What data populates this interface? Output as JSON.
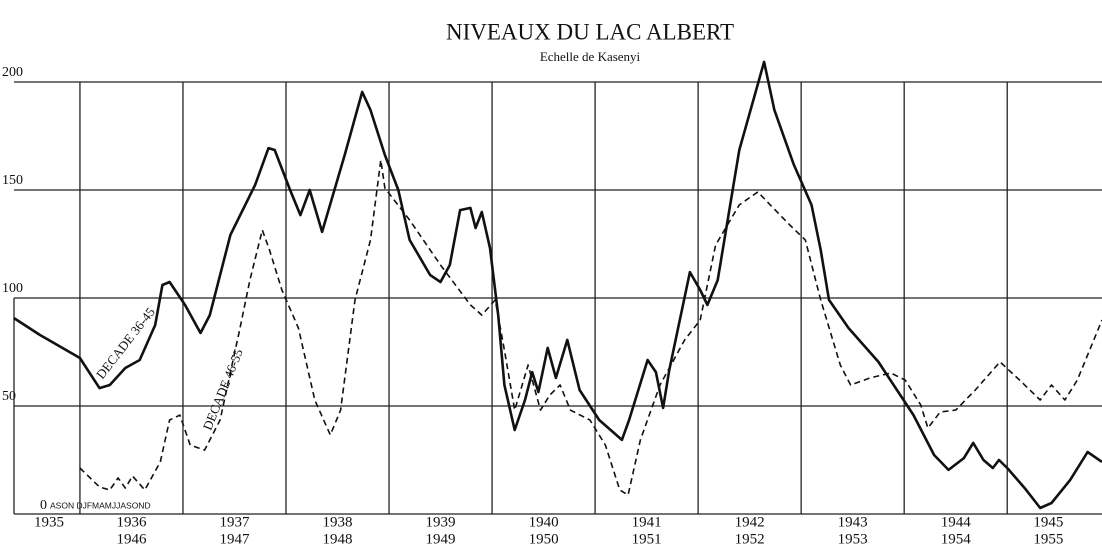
{
  "chart_data": {
    "type": "line",
    "title": "NIVEAUX DU LAC ALBERT",
    "subtitle": "Echelle de Kasenyi",
    "month_axis": "ASON DJFMAMJJASOND",
    "xlim": [
      1935.36,
      1945.92
    ],
    "ylim": [
      0,
      200
    ],
    "yticks": [
      0,
      50,
      100,
      150,
      200
    ],
    "xticks": [
      1936,
      1937,
      1938,
      1939,
      1940,
      1941,
      1942,
      1943,
      1944,
      1945
    ],
    "year_labels": [
      {
        "value": 1935.7,
        "labels": [
          "1935"
        ]
      },
      {
        "value": 1936.5,
        "labels": [
          "1936",
          "1946"
        ]
      },
      {
        "value": 1937.5,
        "labels": [
          "1937",
          "1947"
        ]
      },
      {
        "value": 1938.5,
        "labels": [
          "1938",
          "1948"
        ]
      },
      {
        "value": 1939.5,
        "labels": [
          "1939",
          "1949"
        ]
      },
      {
        "value": 1940.5,
        "labels": [
          "1940",
          "1950"
        ]
      },
      {
        "value": 1941.5,
        "labels": [
          "1941",
          "1951"
        ]
      },
      {
        "value": 1942.5,
        "labels": [
          "1942",
          "1952"
        ]
      },
      {
        "value": 1943.5,
        "labels": [
          "1943",
          "1953"
        ]
      },
      {
        "value": 1944.5,
        "labels": [
          "1944",
          "1954"
        ]
      },
      {
        "value": 1945.4,
        "labels": [
          "1945",
          "1955"
        ]
      }
    ],
    "grid": true,
    "series": [
      {
        "name": "DECADE 36-45",
        "color": "#111",
        "style": "solid",
        "x": [
          1935.36,
          1935.61,
          1936.0,
          1936.19,
          1936.29,
          1936.44,
          1936.58,
          1936.73,
          1936.8,
          1936.87,
          1937.02,
          1937.17,
          1937.26,
          1937.46,
          1937.7,
          1937.83,
          1937.89,
          1938.04,
          1938.14,
          1938.23,
          1938.35,
          1938.57,
          1938.74,
          1938.82,
          1938.96,
          1939.09,
          1939.2,
          1939.4,
          1939.5,
          1939.59,
          1939.69,
          1939.79,
          1939.84,
          1939.9,
          1939.98,
          1940.06,
          1940.12,
          1940.22,
          1940.32,
          1940.39,
          1940.45,
          1940.54,
          1940.62,
          1940.73,
          1940.85,
          1941.04,
          1941.26,
          1941.33,
          1941.51,
          1941.59,
          1941.66,
          1941.72,
          1941.92,
          1942.02,
          1942.09,
          1942.19,
          1942.4,
          1942.64,
          1942.74,
          1942.93,
          1943.1,
          1943.19,
          1943.27,
          1943.46,
          1943.75,
          1944.09,
          1944.29,
          1944.43,
          1944.58,
          1944.67,
          1944.77,
          1944.86,
          1944.92,
          1945.0,
          1945.17,
          1945.32,
          1945.43,
          1945.61,
          1945.78,
          1945.92
        ],
        "values": [
          90.7,
          82.9,
          72.2,
          58.3,
          59.7,
          67.6,
          71.3,
          87.5,
          106,
          107.4,
          96.8,
          83.8,
          92.1,
          129.2,
          152.3,
          169.4,
          168.5,
          150,
          138.4,
          150,
          130.6,
          166.2,
          195.4,
          187,
          166.2,
          150,
          126.9,
          110.6,
          107.4,
          115.3,
          140.7,
          141.7,
          132.4,
          139.8,
          123.1,
          92.1,
          59.7,
          38.9,
          52.8,
          65.7,
          56.5,
          76.9,
          63,
          80.6,
          57.4,
          43.5,
          34.3,
          43.5,
          71.3,
          65.7,
          49.1,
          66.7,
          112,
          103.7,
          96.8,
          108.3,
          168.5,
          209.3,
          187,
          161.6,
          143.1,
          122.2,
          99.1,
          86.1,
          70.4,
          45.8,
          27.3,
          20.4,
          25.9,
          32.9,
          25,
          21.3,
          25,
          21.3,
          12,
          2.8,
          5.1,
          15.7,
          28.7,
          24.1
        ]
      },
      {
        "name": "DECADE 46-55",
        "color": "#111",
        "style": "dashed",
        "x": [
          1936.0,
          1936.19,
          1936.29,
          1936.37,
          1936.44,
          1936.51,
          1936.63,
          1936.78,
          1936.87,
          1936.97,
          1937.07,
          1937.21,
          1937.36,
          1937.55,
          1937.65,
          1937.77,
          1937.84,
          1937.96,
          1938.12,
          1938.28,
          1938.43,
          1938.53,
          1938.67,
          1938.82,
          1938.92,
          1938.96,
          1939.2,
          1939.5,
          1939.79,
          1939.9,
          1940.03,
          1940.12,
          1940.22,
          1940.35,
          1940.47,
          1940.56,
          1940.66,
          1940.76,
          1940.95,
          1941.1,
          1941.24,
          1941.32,
          1941.44,
          1941.63,
          1941.87,
          1942.02,
          1942.17,
          1942.4,
          1942.58,
          1942.7,
          1942.89,
          1943.04,
          1943.19,
          1943.38,
          1943.48,
          1943.67,
          1943.87,
          1944.01,
          1944.16,
          1944.23,
          1944.35,
          1944.5,
          1944.69,
          1944.93,
          1945.12,
          1945.32,
          1945.43,
          1945.56,
          1945.68,
          1945.92
        ],
        "values": [
          21.3,
          12.5,
          11.1,
          16.7,
          12,
          17.6,
          11.1,
          24.1,
          43.5,
          45.8,
          31.9,
          29.6,
          43.5,
          85.2,
          108.3,
          131.5,
          122.2,
          103.7,
          86.1,
          52.8,
          36.6,
          48.1,
          99.1,
          126.9,
          163.9,
          150.9,
          136.1,
          115.3,
          96.8,
          92.1,
          99.1,
          75.9,
          48.1,
          69,
          48.1,
          55.1,
          59.7,
          48.1,
          43.5,
          31.9,
          11.1,
          8.8,
          34.3,
          59.7,
          80.6,
          89.8,
          124.5,
          143.1,
          149.1,
          143.1,
          133.8,
          126.9,
          99.1,
          69,
          59.7,
          63,
          65.3,
          62,
          50.5,
          39.8,
          47.2,
          48.1,
          57.4,
          70.4,
          62,
          52.8,
          59.7,
          52.8,
          62,
          89.8
        ]
      }
    ]
  }
}
